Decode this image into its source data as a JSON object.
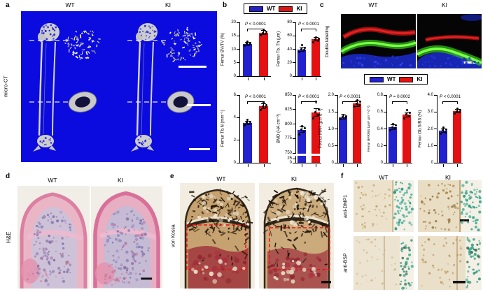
{
  "colors": {
    "wt": "#2121cd",
    "ki": "#e31111",
    "microct_bg": "#0b0be0"
  },
  "panels": {
    "a": {
      "letter": "a",
      "side_label": "micro-CT",
      "cols": [
        "WT",
        "KI"
      ]
    },
    "b": {
      "letter": "b",
      "legend": [
        "WT",
        "KI"
      ]
    },
    "c": {
      "letter": "c",
      "side_label": "Double labelling",
      "cols": [
        "WT",
        "KI"
      ],
      "legend": [
        "WT",
        "KI"
      ]
    },
    "d": {
      "letter": "d",
      "side_label": "H&E",
      "cols": [
        "WT",
        "KI"
      ]
    },
    "e": {
      "letter": "e",
      "side_label": "von Kossa",
      "cols": [
        "WT",
        "KI"
      ]
    },
    "f": {
      "letter": "f",
      "rows": [
        "anti-DMP1",
        "anti-BSP"
      ],
      "cols": [
        "WT",
        "KI"
      ]
    }
  },
  "chart_data": [
    {
      "id": "bvtv",
      "type": "bar",
      "ylabel": "Femur BV/TV (%)",
      "categories": [
        "WT",
        "KI"
      ],
      "values": [
        12,
        16.2
      ],
      "sd": [
        0.7,
        0.8
      ],
      "points": [
        [
          11.2,
          11.8,
          12.0,
          12.4,
          12.8
        ],
        [
          15.3,
          15.8,
          16.1,
          16.5,
          17.0
        ]
      ],
      "ylim": [
        0,
        20
      ],
      "yticks": [
        "0",
        "5",
        "10",
        "15",
        "20"
      ],
      "p_label": "P < 0.0001"
    },
    {
      "id": "tbth",
      "type": "bar",
      "ylabel": "Femur Tb. Th (μm)",
      "categories": [
        "WT",
        "KI"
      ],
      "values": [
        40,
        55
      ],
      "sd": [
        3,
        2.5
      ],
      "points": [
        [
          36,
          39,
          40,
          42,
          46
        ],
        [
          50,
          53,
          55,
          56,
          58
        ]
      ],
      "ylim": [
        0,
        80
      ],
      "yticks": [
        "0",
        "20",
        "40",
        "60",
        "80"
      ],
      "p_label": "P < 0.0001"
    },
    {
      "id": "tbn",
      "type": "bar",
      "ylabel": "Femur Tb.N (mm⁻¹)",
      "categories": [
        "WT",
        "KI"
      ],
      "values": [
        3.55,
        5.0
      ],
      "sd": [
        0.15,
        0.2
      ],
      "points": [
        [
          3.3,
          3.45,
          3.55,
          3.65,
          3.8
        ],
        [
          4.7,
          4.9,
          5.0,
          5.1,
          5.3
        ]
      ],
      "ylim": [
        0,
        6
      ],
      "yticks": [
        "0",
        "2",
        "4",
        "6"
      ],
      "p_label": "P < 0.0001"
    },
    {
      "id": "bmd",
      "type": "bar",
      "ylabel": "BMD (HA cm⁻³)",
      "categories": [
        "WT",
        "KI"
      ],
      "values": [
        790,
        820
      ],
      "sd": [
        5,
        7
      ],
      "points": [
        [
          782,
          787,
          790,
          793,
          797
        ],
        [
          810,
          816,
          820,
          825,
          838
        ]
      ],
      "ylim": [
        750,
        850
      ],
      "yticks": [
        "750",
        "775",
        "800",
        "825",
        "850"
      ],
      "axis_break": {
        "labels": [
          "25",
          "0"
        ]
      },
      "p_label": "P < 0.0001"
    },
    {
      "id": "mar",
      "type": "bar",
      "ylabel": "Femur MAR (μm d⁻¹)",
      "categories": [
        "WT",
        "KI"
      ],
      "values": [
        1.35,
        1.75
      ],
      "sd": [
        0.06,
        0.08
      ],
      "points": [
        [
          1.28,
          1.32,
          1.35,
          1.38,
          1.42
        ],
        [
          1.65,
          1.7,
          1.75,
          1.8,
          1.85
        ]
      ],
      "ylim": [
        0,
        2.0
      ],
      "yticks": [
        "0",
        "0.5",
        "1.0",
        "1.5",
        "2.0"
      ],
      "p_label": "P < 0.0001"
    },
    {
      "id": "bfr",
      "type": "bar",
      "ylabel": "Femur BFR/BS (μm³ μm⁻² d⁻¹)",
      "categories": [
        "WT",
        "KI"
      ],
      "values": [
        0.42,
        0.57
      ],
      "sd": [
        0.03,
        0.03
      ],
      "points": [
        [
          0.38,
          0.41,
          0.42,
          0.44,
          0.46
        ],
        [
          0.52,
          0.55,
          0.57,
          0.59,
          0.62
        ]
      ],
      "ylim": [
        0,
        0.8
      ],
      "yticks": [
        "0",
        "0.2",
        "0.4",
        "0.6",
        "0.8"
      ],
      "p_label": "P = 0.0002"
    },
    {
      "id": "obs",
      "type": "bar",
      "ylabel": "Femur Ob.S/BS (%)",
      "categories": [
        "WT",
        "KI"
      ],
      "values": [
        1.9,
        3.05
      ],
      "sd": [
        0.12,
        0.12
      ],
      "points": [
        [
          1.7,
          1.8,
          1.9,
          1.95,
          2.1
        ],
        [
          2.9,
          3.0,
          3.05,
          3.1,
          3.2
        ]
      ],
      "ylim": [
        0,
        4.0
      ],
      "yticks": [
        "0",
        "1.0",
        "2.0",
        "3.0",
        "4.0"
      ],
      "p_label": "P < 0.0001"
    }
  ]
}
